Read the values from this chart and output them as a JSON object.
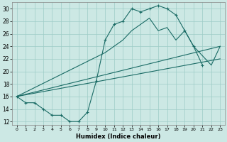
{
  "xlabel": "Humidex (Indice chaleur)",
  "bg_color": "#cce8e4",
  "grid_color": "#9eccc6",
  "line_color": "#1a6b65",
  "xlim": [
    -0.5,
    23.5
  ],
  "ylim": [
    11.5,
    31
  ],
  "xticks": [
    0,
    1,
    2,
    3,
    4,
    5,
    6,
    7,
    8,
    9,
    10,
    11,
    12,
    13,
    14,
    15,
    16,
    17,
    18,
    19,
    20,
    21,
    22,
    23
  ],
  "yticks": [
    12,
    14,
    16,
    18,
    20,
    22,
    24,
    26,
    28,
    30
  ],
  "line1_x": [
    0,
    1,
    2,
    3,
    4,
    5,
    6,
    7,
    8,
    9,
    10,
    11,
    12,
    13,
    14,
    15,
    16,
    17,
    18,
    19,
    20,
    21
  ],
  "line1_y": [
    16,
    15,
    15,
    14,
    13,
    13,
    12,
    12,
    13.5,
    18.5,
    25,
    27.5,
    28,
    30,
    29.5,
    30,
    30.5,
    30,
    29,
    26.5,
    24,
    21
  ],
  "line2_x": [
    0,
    10,
    11,
    12,
    13,
    14,
    15,
    16,
    17,
    18,
    19,
    20,
    22,
    23
  ],
  "line2_y": [
    16,
    23,
    24,
    25,
    26.5,
    27.5,
    28.5,
    26.5,
    27,
    25,
    26.5,
    24,
    21,
    24
  ],
  "line3_x": [
    0,
    23
  ],
  "line3_y": [
    16,
    24
  ],
  "line4_x": [
    0,
    23
  ],
  "line4_y": [
    16,
    22
  ]
}
